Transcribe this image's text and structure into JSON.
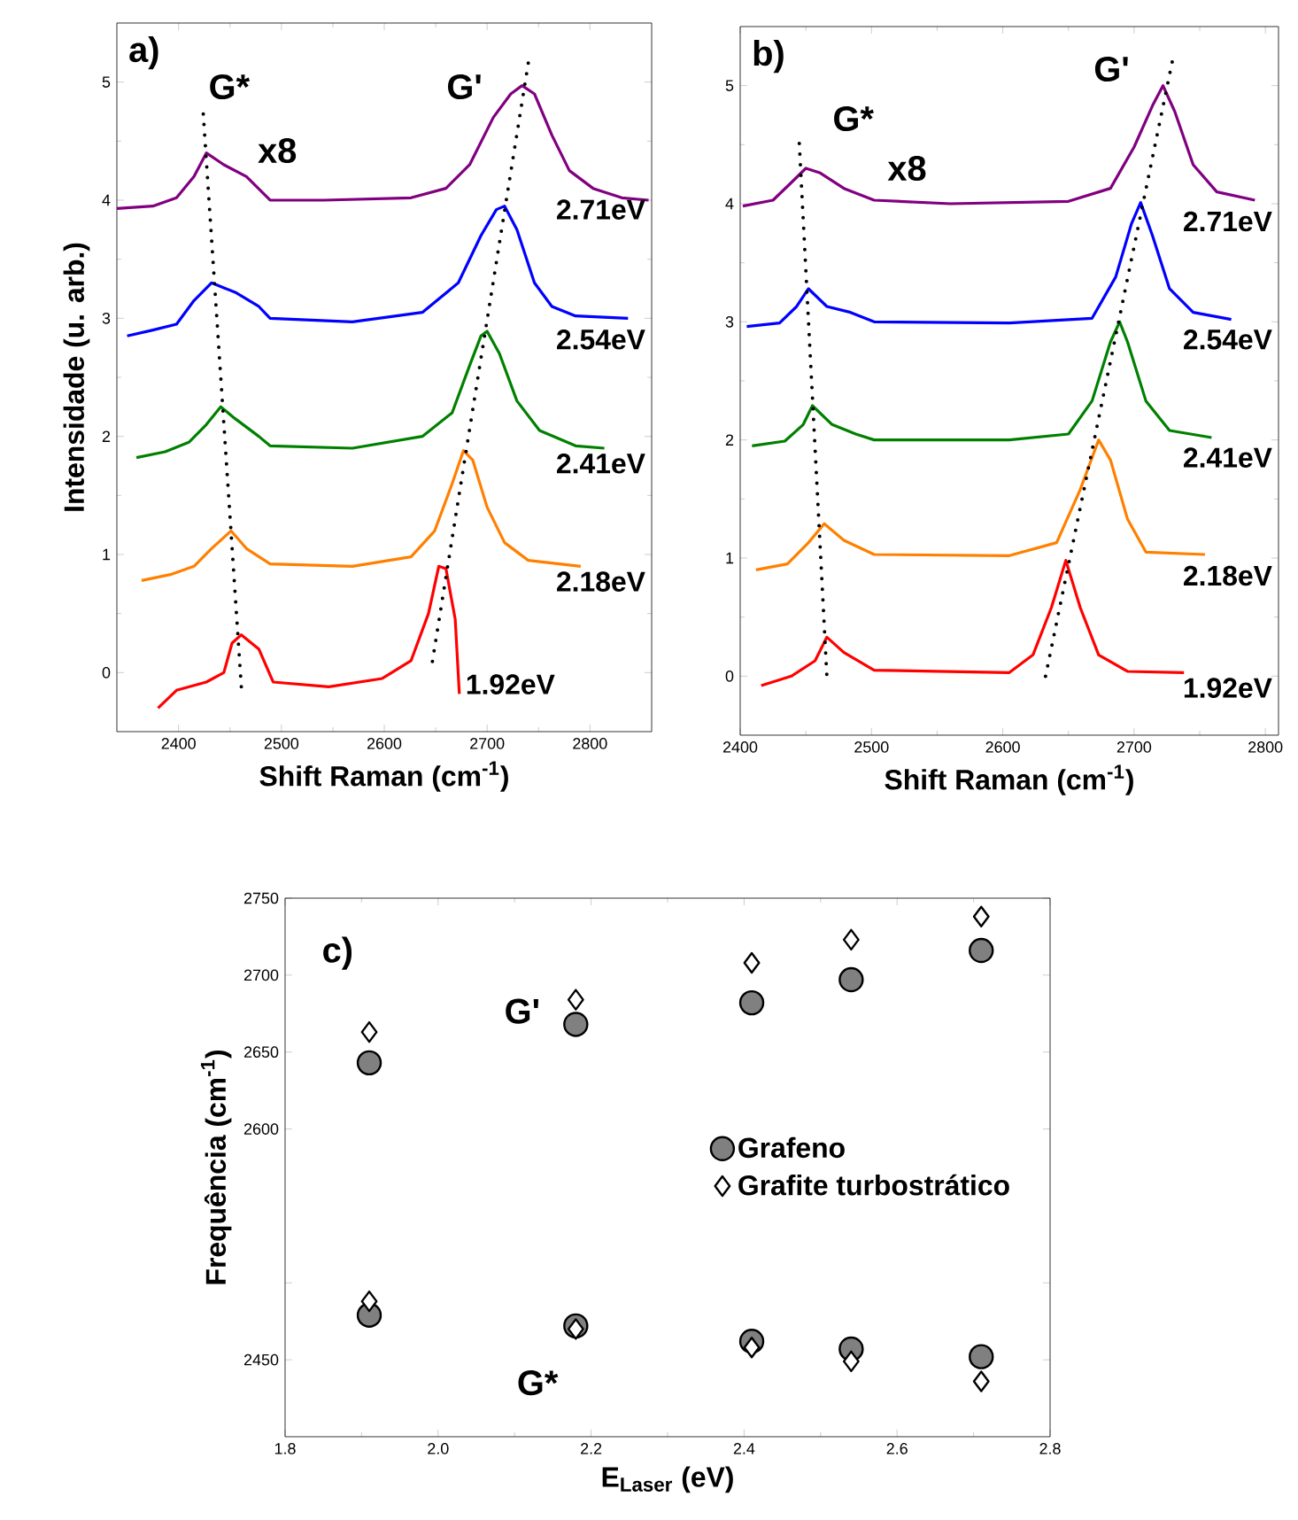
{
  "chart_data": [
    {
      "type": "line",
      "xlabel": "Shift Raman (cm$^{-1}$)",
      "ylabel": "Intensidade (u. arb.)",
      "xlim": [
        2340,
        2860
      ],
      "ylim": [
        -0.5,
        5.5
      ],
      "xticks": [
        2400,
        2500,
        2600,
        2700,
        2800
      ],
      "yticks": [
        0,
        1,
        2,
        3,
        4,
        5
      ],
      "annotations": [
        "a)",
        "G*",
        "G'",
        "x8"
      ],
      "series": [
        {
          "name": "2.71eV",
          "color": "#800080",
          "x": [
            2340,
            2375,
            2398,
            2415,
            2427,
            2444,
            2466,
            2489,
            2541,
            2626,
            2660,
            2683,
            2706,
            2723,
            2734,
            2746,
            2763,
            2780,
            2803,
            2831,
            2857
          ],
          "values": [
            3.93,
            3.95,
            4.02,
            4.2,
            4.4,
            4.3,
            4.2,
            4.0,
            4.0,
            4.02,
            4.1,
            4.3,
            4.7,
            4.9,
            4.97,
            4.9,
            4.55,
            4.25,
            4.1,
            4.02,
            4.0
          ]
        },
        {
          "name": "2.54eV",
          "color": "#0000ff",
          "x": [
            2350,
            2375,
            2398,
            2415,
            2432,
            2455,
            2478,
            2489,
            2569,
            2637,
            2672,
            2694,
            2709,
            2717,
            2729,
            2746,
            2763,
            2786,
            2837
          ],
          "values": [
            2.85,
            2.9,
            2.95,
            3.15,
            3.3,
            3.22,
            3.1,
            3.0,
            2.97,
            3.05,
            3.3,
            3.7,
            3.92,
            3.95,
            3.75,
            3.3,
            3.1,
            3.02,
            3.0
          ]
        },
        {
          "name": "2.41eV",
          "color": "#008000",
          "x": [
            2359,
            2387,
            2410,
            2427,
            2441,
            2455,
            2478,
            2489,
            2569,
            2637,
            2666,
            2683,
            2694,
            2700,
            2712,
            2729,
            2751,
            2786,
            2814
          ],
          "values": [
            1.82,
            1.87,
            1.95,
            2.1,
            2.25,
            2.15,
            2.0,
            1.92,
            1.9,
            2.0,
            2.2,
            2.6,
            2.85,
            2.89,
            2.7,
            2.3,
            2.05,
            1.92,
            1.9
          ]
        },
        {
          "name": "2.18eV",
          "color": "#ff8000",
          "x": [
            2364,
            2392,
            2415,
            2432,
            2451,
            2466,
            2489,
            2569,
            2626,
            2649,
            2666,
            2677,
            2686,
            2700,
            2717,
            2740,
            2791
          ],
          "values": [
            0.78,
            0.83,
            0.9,
            1.05,
            1.2,
            1.05,
            0.92,
            0.9,
            0.98,
            1.2,
            1.6,
            1.88,
            1.8,
            1.4,
            1.1,
            0.95,
            0.9
          ]
        },
        {
          "name": "1.92eV",
          "color": "#ff0000",
          "x": [
            2380,
            2398,
            2427,
            2444,
            2452,
            2461,
            2478,
            2492,
            2546,
            2598,
            2626,
            2643,
            2653,
            2660,
            2669,
            2673
          ],
          "values": [
            -0.3,
            -0.15,
            -0.08,
            0,
            0.25,
            0.32,
            0.2,
            -0.08,
            -0.12,
            -0.05,
            0.1,
            0.5,
            0.9,
            0.88,
            0.45,
            -0.18
          ]
        },
        {
          "color": "#000000",
          "line_style": "dotted",
          "x": [
            2424,
            2461
          ],
          "values": [
            4.73,
            -0.12
          ]
        },
        {
          "color": "#000000",
          "line_style": "dotted",
          "x": [
            2740,
            2646
          ],
          "values": [
            5.16,
            0.05
          ]
        }
      ]
    },
    {
      "type": "line",
      "xlabel": "Shift Raman (cm$^{-1}$)",
      "xlim": [
        2400,
        2810
      ],
      "ylim": [
        -0.5,
        5.5
      ],
      "xticks": [
        2400,
        2500,
        2600,
        2700,
        2800
      ],
      "yticks": [
        0,
        1,
        2,
        3,
        4,
        5
      ],
      "annotations": [
        "b)",
        "G*",
        "G'",
        "x8"
      ],
      "series": [
        {
          "name": "2.71eV",
          "color": "#800080",
          "x": [
            2402,
            2425,
            2439,
            2450,
            2461,
            2479,
            2502,
            2560,
            2650,
            2682,
            2700,
            2714,
            2722,
            2731,
            2745,
            2763,
            2792
          ],
          "values": [
            3.98,
            4.03,
            4.18,
            4.3,
            4.26,
            4.13,
            4.03,
            4.0,
            4.02,
            4.13,
            4.48,
            4.83,
            5.0,
            4.78,
            4.33,
            4.1,
            4.03
          ]
        },
        {
          "name": "2.54eV",
          "color": "#0000ff",
          "x": [
            2405,
            2430,
            2443,
            2452,
            2466,
            2484,
            2502,
            2605,
            2668,
            2686,
            2698,
            2705,
            2714,
            2727,
            2745,
            2774
          ],
          "values": [
            2.96,
            2.99,
            3.13,
            3.28,
            3.13,
            3.08,
            3.0,
            2.99,
            3.03,
            3.38,
            3.83,
            4.01,
            3.73,
            3.28,
            3.08,
            3.02
          ]
        },
        {
          "name": "2.41eV",
          "color": "#008000",
          "x": [
            2409,
            2434,
            2448,
            2455,
            2470,
            2488,
            2502,
            2605,
            2650,
            2668,
            2682,
            2689,
            2695,
            2709,
            2727,
            2759
          ],
          "values": [
            1.95,
            1.99,
            2.13,
            2.29,
            2.13,
            2.05,
            2.0,
            2.0,
            2.05,
            2.33,
            2.83,
            3.0,
            2.83,
            2.33,
            2.08,
            2.02
          ]
        },
        {
          "name": "2.18eV",
          "color": "#ff8000",
          "x": [
            2412,
            2436,
            2452,
            2464,
            2479,
            2502,
            2605,
            2641,
            2659,
            2673,
            2682,
            2695,
            2709,
            2754
          ],
          "values": [
            0.9,
            0.95,
            1.13,
            1.29,
            1.15,
            1.03,
            1.02,
            1.13,
            1.58,
            2.0,
            1.83,
            1.33,
            1.05,
            1.03
          ]
        },
        {
          "name": "1.92eV",
          "color": "#ff0000",
          "x": [
            2416,
            2439,
            2457,
            2466,
            2479,
            2502,
            2605,
            2623,
            2637,
            2648,
            2659,
            2673,
            2695,
            2738
          ],
          "values": [
            -0.08,
            0,
            0.13,
            0.33,
            0.2,
            0.05,
            0.03,
            0.18,
            0.58,
            0.98,
            0.58,
            0.18,
            0.04,
            0.03
          ]
        },
        {
          "color": "#000000",
          "line_style": "dotted",
          "x": [
            2445,
            2466
          ],
          "values": [
            4.51,
            0.0
          ]
        },
        {
          "color": "#000000",
          "line_style": "dotted",
          "x": [
            2729,
            2632
          ],
          "values": [
            5.2,
            -0.03
          ]
        }
      ]
    },
    {
      "type": "scatter",
      "xlabel": "E$_{Laser}$ (eV)",
      "ylabel": "Frequência (cm$^{-1}$)",
      "x": [
        1.91,
        2.18,
        2.41,
        2.54,
        2.71,
        1.91,
        2.18,
        2.41,
        2.54,
        2.71
      ],
      "xlim": [
        1.8,
        2.8
      ],
      "ylim": [
        2400,
        2750
      ],
      "xticks": [
        1.8,
        {
          "value": 2.0,
          "label": "2.0"
        },
        2.2,
        2.4,
        2.6,
        2.8
      ],
      "yticks": [
        2450,
        {
          "value": 2500,
          "label": null
        },
        2600,
        2650,
        2700,
        2750
      ],
      "legend": "right",
      "annotations": [
        "c)",
        "G'",
        "G*"
      ],
      "series": [
        {
          "name": "Grafeno",
          "color": "#808080",
          "marker": "circle",
          "values": [
            2643,
            2668,
            2682,
            2697,
            2716,
            2479,
            2472,
            2462,
            2457,
            2452
          ]
        },
        {
          "name": "Grafite turbostrático",
          "color": "#ffffff",
          "marker": "diamond",
          "values": [
            2663,
            2684,
            2708,
            2723,
            2738,
            2488,
            2470,
            2458,
            2449,
            2436
          ]
        }
      ]
    }
  ]
}
